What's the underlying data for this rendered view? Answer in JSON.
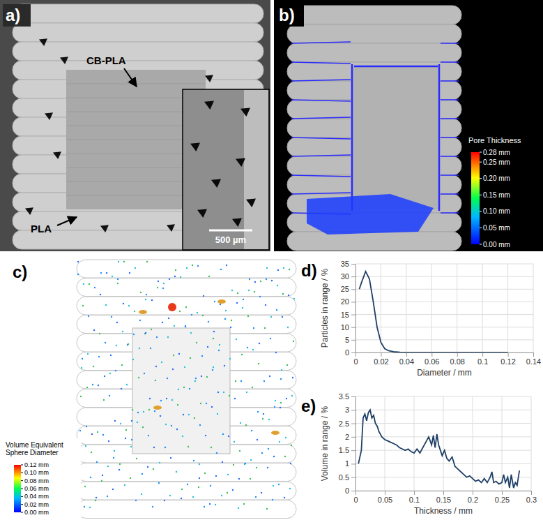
{
  "chart_data": [
    {
      "type": "line",
      "x_label": "Diameter / mm",
      "y_label": "Particles in range / %",
      "x": [
        0.003,
        0.005,
        0.008,
        0.011,
        0.014,
        0.017,
        0.02,
        0.023,
        0.026,
        0.03,
        0.035,
        0.04,
        0.05,
        0.06,
        0.07,
        0.08,
        0.09,
        0.1,
        0.11,
        0.12
      ],
      "values": [
        25,
        28,
        32,
        29,
        20,
        10,
        4,
        1.5,
        0.7,
        0.3,
        0.1,
        0,
        0,
        0,
        0,
        0,
        0,
        0,
        0,
        0
      ],
      "color": "#1f3f66",
      "xlim": [
        0,
        0.14
      ],
      "xticks": [
        0,
        0.02,
        0.04,
        0.06,
        0.08,
        0.1,
        0.12,
        0.14
      ],
      "ylim": [
        0,
        35
      ],
      "yticks": [
        0,
        5,
        10,
        15,
        20,
        25,
        30,
        35
      ],
      "grid": true
    },
    {
      "type": "line",
      "x_label": "Thickness / mm",
      "y_label": "Volume in range / %",
      "x": [
        0.005,
        0.01,
        0.013,
        0.016,
        0.019,
        0.022,
        0.025,
        0.028,
        0.031,
        0.034,
        0.037,
        0.04,
        0.045,
        0.05,
        0.055,
        0.06,
        0.065,
        0.07,
        0.075,
        0.08,
        0.085,
        0.09,
        0.095,
        0.1,
        0.105,
        0.11,
        0.115,
        0.12,
        0.125,
        0.13,
        0.133,
        0.136,
        0.139,
        0.142,
        0.145,
        0.148,
        0.152,
        0.156,
        0.16,
        0.165,
        0.17,
        0.175,
        0.18,
        0.185,
        0.19,
        0.195,
        0.2,
        0.205,
        0.21,
        0.215,
        0.22,
        0.225,
        0.23,
        0.233,
        0.236,
        0.24,
        0.245,
        0.25,
        0.253,
        0.256,
        0.26,
        0.263,
        0.266,
        0.27,
        0.273,
        0.276,
        0.28
      ],
      "values": [
        1,
        1.5,
        2.7,
        2.85,
        2.6,
        2.9,
        3,
        2.7,
        2.8,
        2.5,
        2.4,
        2.2,
        2,
        1.9,
        1.85,
        1.8,
        1.75,
        1.7,
        1.6,
        1.55,
        1.5,
        1.55,
        1.45,
        1.4,
        1.55,
        1.4,
        1.6,
        1.8,
        2,
        1.7,
        2.05,
        1.6,
        2.1,
        1.7,
        1.5,
        1.3,
        1.5,
        1.2,
        1.1,
        1.25,
        0.9,
        0.8,
        0.7,
        0.6,
        0.5,
        0.55,
        0.45,
        0.35,
        0.4,
        0.3,
        0.45,
        0.3,
        0.5,
        0.7,
        0.3,
        0.35,
        0.25,
        0.3,
        0.6,
        0.3,
        0.5,
        0.1,
        0.6,
        0.1,
        0.3,
        0.2,
        0.75
      ],
      "color": "#1f3f66",
      "xlim": [
        0,
        0.3
      ],
      "xticks": [
        0,
        0.05,
        0.1,
        0.15,
        0.2,
        0.25,
        0.3
      ],
      "ylim": [
        0,
        3.5
      ],
      "yticks": [
        0,
        0.5,
        1,
        1.5,
        2,
        2.5,
        3,
        3.5
      ],
      "grid": true
    }
  ],
  "panels": {
    "a": {
      "label": "a)",
      "annotations": [
        "CB-PLA",
        "PLA"
      ],
      "scale_bar": "500 µm"
    },
    "b": {
      "label": "b)",
      "colorbar": {
        "title": "Pore Thickness",
        "range": [
          0,
          0.28
        ],
        "ticks": [
          {
            "value": 0.28,
            "label": "0.28 mm"
          },
          {
            "value": 0.25,
            "label": "0.25 mm"
          },
          {
            "value": 0.2,
            "label": "0.20 mm"
          },
          {
            "value": 0.15,
            "label": "0.15 mm"
          },
          {
            "value": 0.1,
            "label": "0.10 mm"
          },
          {
            "value": 0.05,
            "label": "0.05 mm"
          },
          {
            "value": 0,
            "label": "0.00 mm"
          }
        ]
      }
    },
    "c": {
      "label": "c)",
      "colorbar": {
        "title": "Volume Equivalent Sphere Diameter",
        "range": [
          0,
          0.12
        ],
        "ticks": [
          {
            "value": 0.12,
            "label": "0.12 mm"
          },
          {
            "value": 0.1,
            "label": "0.10 mm"
          },
          {
            "value": 0.08,
            "label": "0.08 mm"
          },
          {
            "value": 0.06,
            "label": "0.06 mm"
          },
          {
            "value": 0.04,
            "label": "0.04 mm"
          },
          {
            "value": 0.02,
            "label": "0.02 mm"
          },
          {
            "value": 0,
            "label": "0.00 mm"
          }
        ]
      }
    },
    "d": {
      "label": "d)"
    },
    "e": {
      "label": "e)"
    }
  }
}
